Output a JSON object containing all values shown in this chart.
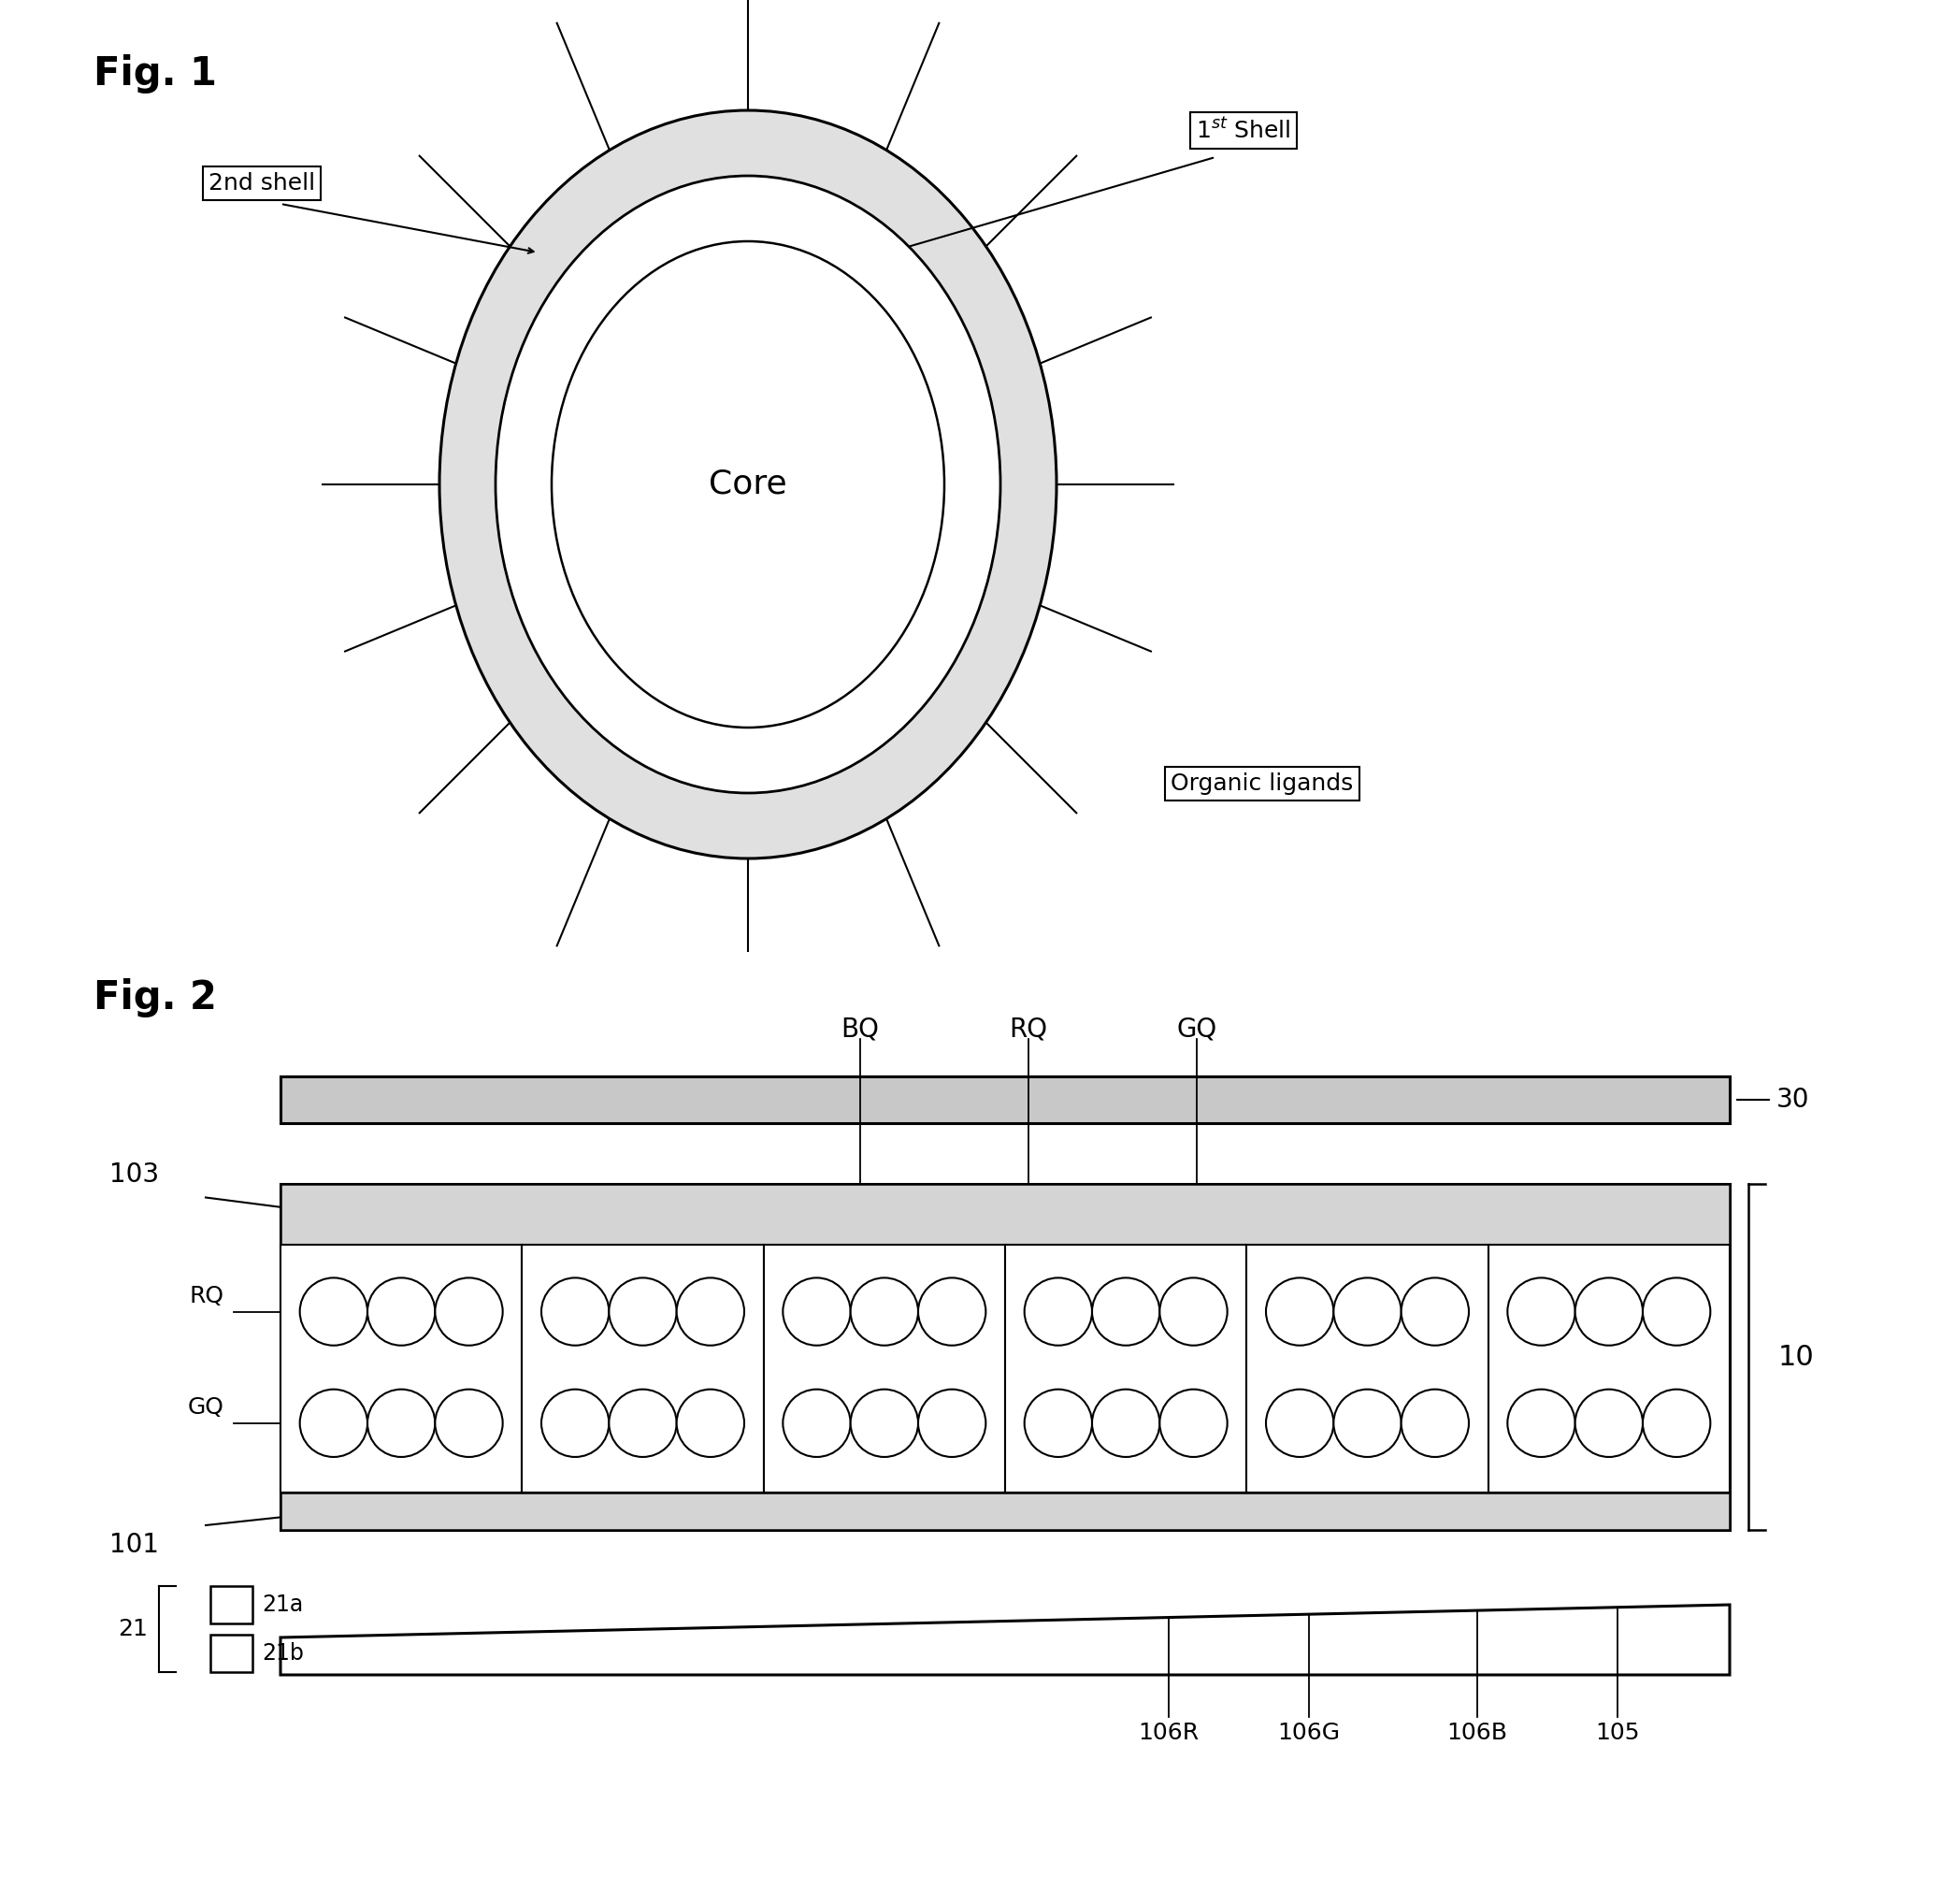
{
  "fig1_title": "Fig. 1",
  "fig2_title": "Fig. 2",
  "core_label": "Core",
  "shell1_label": "1$^{st}$ Shell",
  "shell2_label": "2nd shell",
  "ligands_label": "Organic ligands",
  "background_color": "#ffffff",
  "line_color": "#000000",
  "shell_fill_color": "#e8e8e8",
  "num_ligand_lines": 16,
  "label_30": "30",
  "label_10": "10",
  "label_103": "103",
  "label_101": "101",
  "label_BQ": "BQ",
  "label_RQ": "RQ",
  "label_GQ": "GQ",
  "label_RQ2": "RQ",
  "label_GQ2": "GQ",
  "label_106R": "106R",
  "label_106G": "106G",
  "label_106B": "106B",
  "label_105": "105",
  "label_21": "21",
  "label_21a": "21a",
  "label_21b": "21b"
}
